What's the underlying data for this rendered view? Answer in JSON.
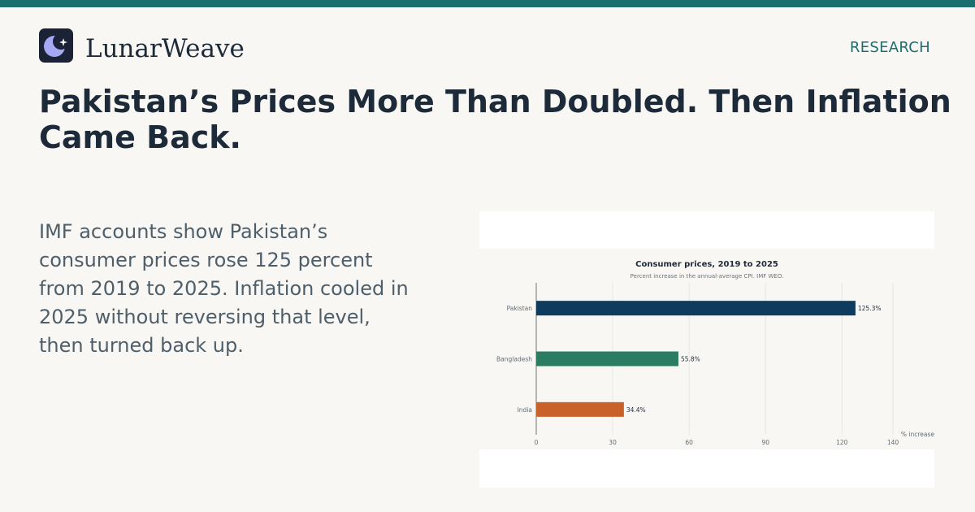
{
  "header": {
    "brand": "LunarWeave",
    "section": "RESEARCH",
    "logo_icon": "moon-star-icon",
    "accent_color": "#1a6e6e"
  },
  "headline": "Pakistan’s Prices More Than Doubled. Then Inflation Came Back.",
  "dek": "IMF accounts show Pakistan’s consumer prices rose 125 percent from 2019 to 2025. Inflation cooled in 2025 without reversing that level, then turned back up.",
  "chart_data": {
    "type": "bar",
    "orientation": "horizontal",
    "title": "Consumer prices, 2019 to 2025",
    "subtitle": "Percent increase in the annual-average CPI. IMF WEO.",
    "categories": [
      "Pakistan",
      "Bangladesh",
      "India"
    ],
    "values": [
      125.3,
      55.8,
      34.4
    ],
    "data_labels": [
      "125.3%",
      "55.8%",
      "34.4%"
    ],
    "colors": [
      "#0f3b5c",
      "#2a7d62",
      "#c8612a"
    ],
    "xlabel": "% increase",
    "xlim": [
      0,
      140
    ],
    "xticks": [
      0,
      30,
      60,
      90,
      120,
      140
    ],
    "grid": true
  }
}
